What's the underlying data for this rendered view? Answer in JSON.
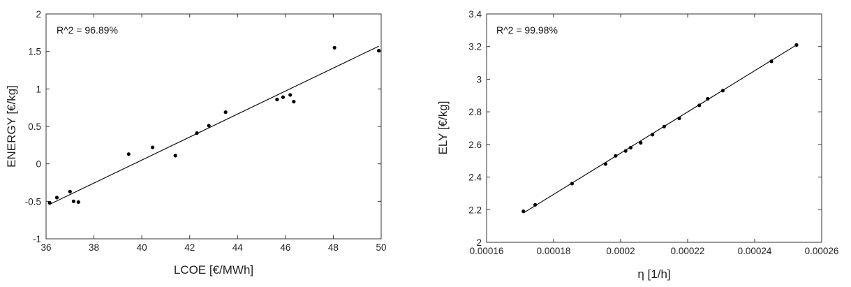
{
  "chart_data": [
    {
      "type": "scatter",
      "annotation": "R^2 = 96.89%",
      "xlabel": "LCOE  [€/MWh]",
      "ylabel": "ENERGY  [€/kg]",
      "xlim": [
        36,
        50
      ],
      "ylim": [
        -1,
        2
      ],
      "xticks": [
        36,
        38,
        40,
        42,
        44,
        46,
        48,
        50
      ],
      "yticks": [
        -1,
        -0.5,
        0,
        0.5,
        1,
        1.5,
        2
      ],
      "xtick_labels": [
        "36",
        "38",
        "40",
        "42",
        "44",
        "46",
        "48",
        "50"
      ],
      "ytick_labels": [
        "-1",
        "-0.5",
        "0",
        "0.5",
        "1",
        "1.5",
        "2"
      ],
      "grid": false,
      "points": [
        {
          "x": 36.15,
          "y": -0.52
        },
        {
          "x": 36.45,
          "y": -0.45
        },
        {
          "x": 37.0,
          "y": -0.37
        },
        {
          "x": 37.15,
          "y": -0.5
        },
        {
          "x": 37.35,
          "y": -0.51
        },
        {
          "x": 39.45,
          "y": 0.13
        },
        {
          "x": 40.45,
          "y": 0.22
        },
        {
          "x": 41.4,
          "y": 0.11
        },
        {
          "x": 42.3,
          "y": 0.41
        },
        {
          "x": 42.8,
          "y": 0.51
        },
        {
          "x": 43.5,
          "y": 0.69
        },
        {
          "x": 45.65,
          "y": 0.86
        },
        {
          "x": 45.9,
          "y": 0.89
        },
        {
          "x": 46.2,
          "y": 0.92
        },
        {
          "x": 46.35,
          "y": 0.83
        },
        {
          "x": 48.05,
          "y": 1.55
        },
        {
          "x": 49.9,
          "y": 1.51
        }
      ],
      "fit_line": {
        "x": [
          36.15,
          49.9
        ],
        "y": [
          -0.54,
          1.57
        ]
      }
    },
    {
      "type": "scatter",
      "annotation": "R^2 = 99.98%",
      "xlabel": "η  [1/h]",
      "ylabel": "ELY  [€/kg]",
      "xlim": [
        0.00016,
        0.00026
      ],
      "ylim": [
        2,
        3.4
      ],
      "xticks": [
        0.00016,
        0.00018,
        0.0002,
        0.00022,
        0.00024,
        0.00026
      ],
      "yticks": [
        2,
        2.2,
        2.4,
        2.6,
        2.8,
        3,
        3.2,
        3.4
      ],
      "xtick_labels": [
        "0.00016",
        "0.00018",
        "0.0002",
        "0.00022",
        "0.00024",
        "0.00026"
      ],
      "ytick_labels": [
        "2",
        "2.2",
        "2.4",
        "2.6",
        "2.8",
        "3",
        "3.2",
        "3.4"
      ],
      "grid": false,
      "points": [
        {
          "x": 0.000171,
          "y": 2.19
        },
        {
          "x": 0.0001745,
          "y": 2.23
        },
        {
          "x": 0.0001855,
          "y": 2.36
        },
        {
          "x": 0.0001955,
          "y": 2.48
        },
        {
          "x": 0.0001985,
          "y": 2.53
        },
        {
          "x": 0.0002015,
          "y": 2.56
        },
        {
          "x": 0.000203,
          "y": 2.58
        },
        {
          "x": 0.000206,
          "y": 2.61
        },
        {
          "x": 0.0002095,
          "y": 2.66
        },
        {
          "x": 0.000213,
          "y": 2.71
        },
        {
          "x": 0.0002175,
          "y": 2.76
        },
        {
          "x": 0.0002235,
          "y": 2.84
        },
        {
          "x": 0.000226,
          "y": 2.88
        },
        {
          "x": 0.0002305,
          "y": 2.93
        },
        {
          "x": 0.000245,
          "y": 3.11
        },
        {
          "x": 0.0002525,
          "y": 3.21
        }
      ],
      "fit_line": {
        "x": [
          0.000171,
          0.0002525
        ],
        "y": [
          2.18,
          3.21
        ]
      }
    }
  ]
}
